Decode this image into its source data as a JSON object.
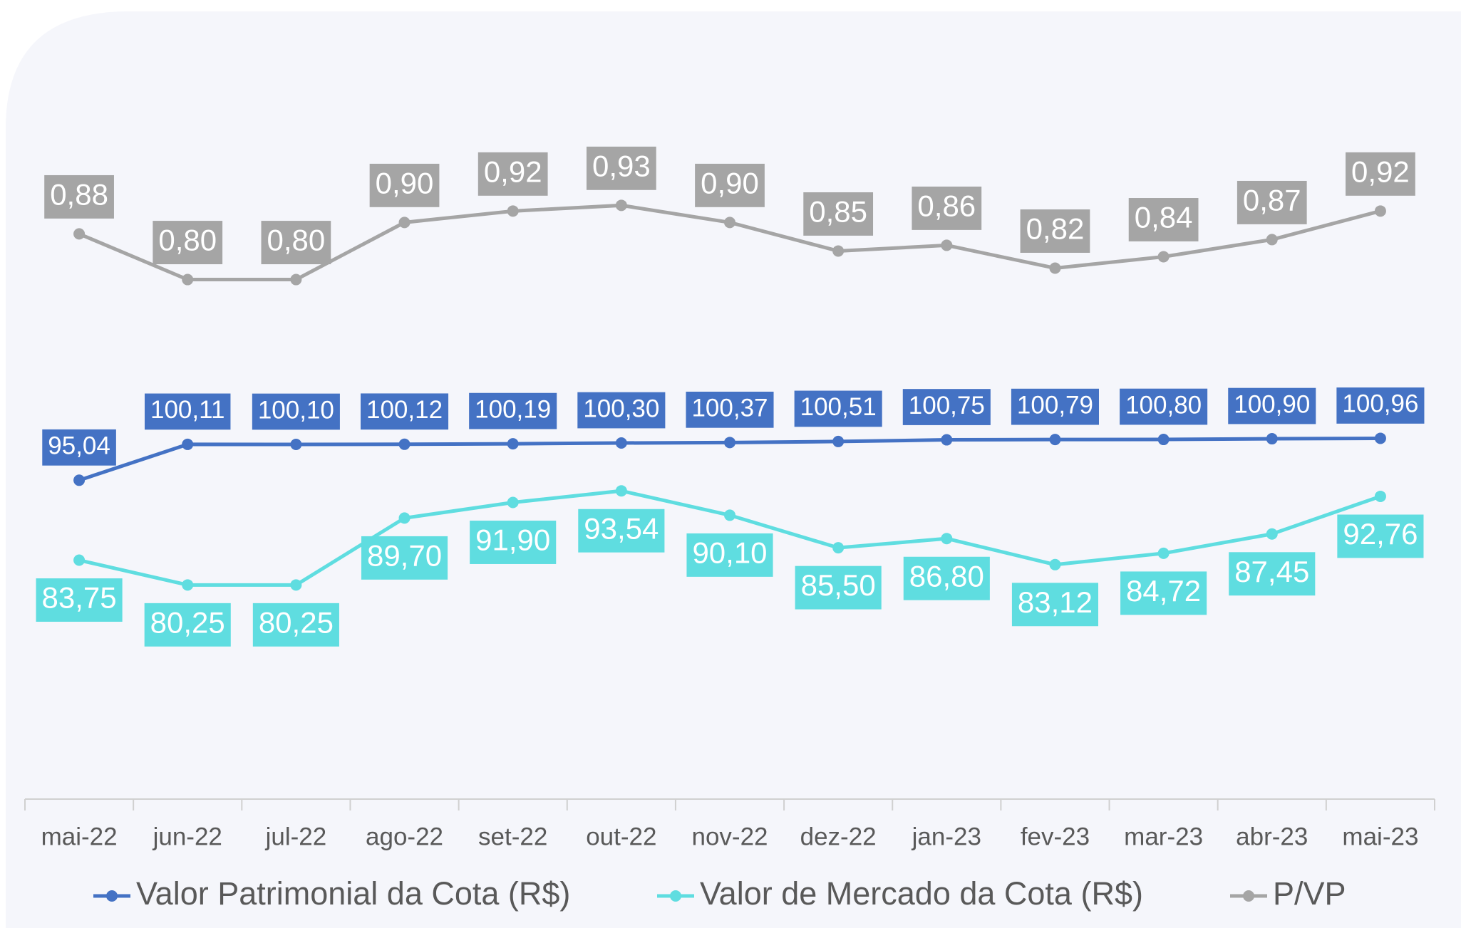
{
  "chart_data": {
    "type": "line",
    "categories": [
      "mai-22",
      "jun-22",
      "jul-22",
      "ago-22",
      "set-22",
      "out-22",
      "nov-22",
      "dez-22",
      "jan-23",
      "fev-23",
      "mar-23",
      "abr-23",
      "mai-23"
    ],
    "ylim": [
      50,
      150
    ],
    "y2lim": [
      -0.11,
      1.13
    ],
    "series": [
      {
        "name": "Valor Patrimonial da Cota (R$)",
        "color": "#4472c4",
        "values": [
          95.04,
          100.11,
          100.1,
          100.12,
          100.19,
          100.3,
          100.37,
          100.51,
          100.75,
          100.79,
          100.8,
          100.9,
          100.96
        ],
        "value_labels": [
          "95,04",
          "100,11",
          "100,10",
          "100,12",
          "100,19",
          "100,30",
          "100,37",
          "100,51",
          "100,75",
          "100,79",
          "100,80",
          "100,90",
          "100,96"
        ]
      },
      {
        "name": "Valor de Mercado da Cota (R$)",
        "color": "#5fdde0",
        "values": [
          83.75,
          80.25,
          80.25,
          89.7,
          91.9,
          93.54,
          90.1,
          85.5,
          86.8,
          83.12,
          84.72,
          87.45,
          92.76
        ],
        "value_labels": [
          "83,75",
          "80,25",
          "80,25",
          "89,70",
          "91,90",
          "93,54",
          "90,10",
          "85,50",
          "86,80",
          "83,12",
          "84,72",
          "87,45",
          "92,76"
        ]
      },
      {
        "name": "P/VP",
        "color": "#a5a5a5",
        "axis": "y2",
        "values": [
          0.88,
          0.8,
          0.8,
          0.9,
          0.92,
          0.93,
          0.9,
          0.85,
          0.86,
          0.82,
          0.84,
          0.87,
          0.92
        ],
        "value_labels": [
          "0,88",
          "0,80",
          "0,80",
          "0,90",
          "0,92",
          "0,93",
          "0,90",
          "0,85",
          "0,86",
          "0,82",
          "0,84",
          "0,87",
          "0,92"
        ]
      }
    ]
  }
}
